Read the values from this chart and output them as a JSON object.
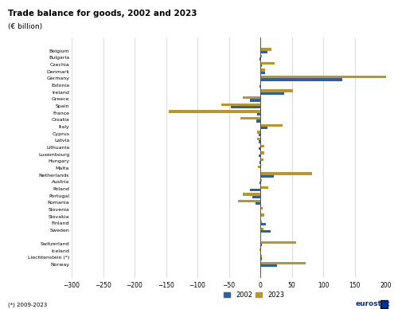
{
  "title": "Trade balance for goods, 2002 and 2023",
  "subtitle": "(€ billion)",
  "footnote": "(*) 2009-2023",
  "categories": [
    "Belgium",
    "Bulgaria",
    "Czechia",
    "Denmark",
    "Germany",
    "Estonia",
    "Ireland",
    "Greece",
    "Spain",
    "France",
    "Croatia",
    "Italy",
    "Cyprus",
    "Latvia",
    "Lithuania",
    "Luxembourg",
    "Hungary",
    "Malta",
    "Netherlands",
    "Austria",
    "Poland",
    "Portugal",
    "Romania",
    "Slovenia",
    "Slovakia",
    "Finland",
    "Sweden",
    "",
    "Switzerland",
    "Iceland",
    "Liechtenstein (*)",
    "Norway"
  ],
  "values_2002": [
    12,
    -1,
    3,
    7,
    130,
    -1,
    38,
    -17,
    -47,
    -5,
    -6,
    12,
    -3,
    -2,
    -2,
    -2,
    -1,
    0,
    22,
    -1,
    -17,
    -13,
    -8,
    1,
    1,
    9,
    16,
    0,
    2,
    0,
    2,
    27
  ],
  "values_2023": [
    18,
    3,
    23,
    8,
    200,
    1,
    52,
    -28,
    -62,
    -145,
    -32,
    36,
    -5,
    -5,
    6,
    6,
    5,
    -4,
    82,
    3,
    13,
    -28,
    -36,
    4,
    6,
    2,
    5,
    0,
    57,
    -1,
    3,
    72
  ],
  "color_2002": "#2E5FA3",
  "color_2023": "#B8972A",
  "xlim": [
    -300,
    200
  ],
  "xticks": [
    -300,
    -250,
    -200,
    -150,
    -100,
    -50,
    0,
    50,
    100,
    150,
    200
  ],
  "legend_2002": "2002",
  "legend_2023": "2023"
}
